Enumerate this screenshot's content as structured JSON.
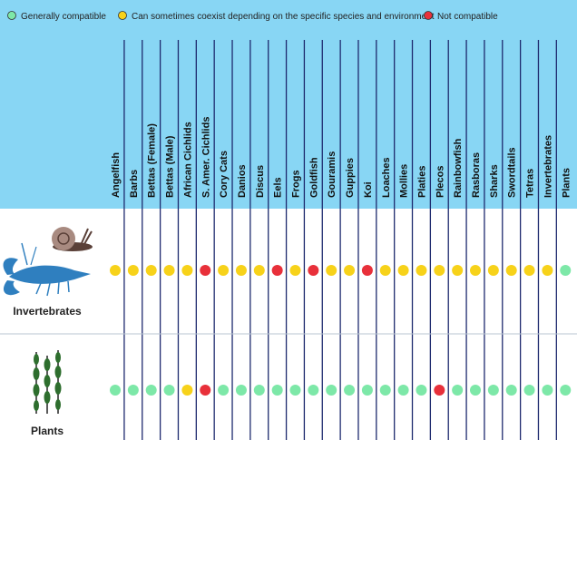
{
  "legend": [
    {
      "key": "green",
      "label": "Generally compatible",
      "color": "#7de8a8"
    },
    {
      "key": "yellow",
      "label": "Can sometimes coexist depending on the specific species and environment",
      "color": "#f7d21a"
    },
    {
      "key": "red",
      "label": "Not compatible",
      "color": "#e8303a"
    }
  ],
  "colors": {
    "header_bg": "#88d6f4",
    "column_line": "#1e2a6e",
    "row_divider": "#b8c4d0",
    "snail_shell": "#a88a80",
    "snail_body": "#5a4038",
    "lobster": "#2f7fbf",
    "plant_leaf": "#2e6e2e",
    "plant_stem": "#222222"
  },
  "chart_data": {
    "type": "table",
    "columns": [
      "Angelfish",
      "Barbs",
      "Bettas (Female)",
      "Bettas (Male)",
      "African Cichlids",
      "S. Amer. Cichlids",
      "Cory Cats",
      "Danios",
      "Discus",
      "Eels",
      "Frogs",
      "Goldfish",
      "Gouramis",
      "Guppies",
      "Koi",
      "Loaches",
      "Mollies",
      "Platies",
      "Plecos",
      "Rainbowfish",
      "Rasboras",
      "Sharks",
      "Swordtails",
      "Tetras",
      "Invertebrates",
      "Plants"
    ],
    "rows": [
      {
        "label": "Invertebrates",
        "icon": "lobster-and-snail-icon",
        "values": [
          "yellow",
          "yellow",
          "yellow",
          "yellow",
          "yellow",
          "red",
          "yellow",
          "yellow",
          "yellow",
          "red",
          "yellow",
          "red",
          "yellow",
          "yellow",
          "red",
          "yellow",
          "yellow",
          "yellow",
          "yellow",
          "yellow",
          "yellow",
          "yellow",
          "yellow",
          "yellow",
          "yellow",
          "green"
        ]
      },
      {
        "label": "Plants",
        "icon": "aquatic-plant-icon",
        "values": [
          "green",
          "green",
          "green",
          "green",
          "yellow",
          "red",
          "green",
          "green",
          "green",
          "green",
          "green",
          "green",
          "green",
          "green",
          "green",
          "green",
          "green",
          "green",
          "red",
          "green",
          "green",
          "green",
          "green",
          "green",
          "green",
          "green"
        ]
      }
    ]
  }
}
